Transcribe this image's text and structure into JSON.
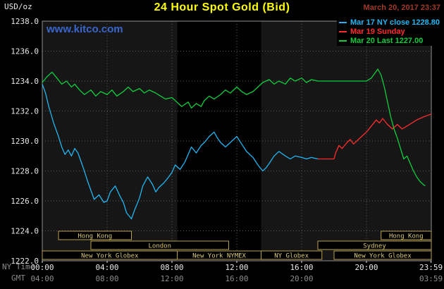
{
  "header": {
    "units": "USD/oz",
    "title": "24 Hour Spot Gold (Bid)",
    "datetime": "March 20, 2017 23:37",
    "watermark": "www.kitco.com"
  },
  "colors": {
    "page_bg": "#000000",
    "plot_bg": "#161616",
    "nymex_band": "#000000",
    "grid": "#5a5a5a",
    "border": "#909090",
    "title": "#ffff00",
    "datetime": "#a03a2a",
    "watermark": "#3a66cc",
    "axis_text": "#e8e8e8",
    "axis_text_dim": "#8a8a8a",
    "session_border": "#b8a14f",
    "session_text": "#d8c878"
  },
  "legend": {
    "items": [
      {
        "label": "Mar 17 NY close 1228.80",
        "color": "#21b6f2"
      },
      {
        "label": "Mar 19 Sunday",
        "color": "#ff2d2d"
      },
      {
        "label": "Mar 20 Last 1227.00",
        "color": "#0fcf3c"
      }
    ]
  },
  "axes": {
    "x_primary_label": "NY Time",
    "x_secondary_label": "GMT",
    "y_ticks": [
      {
        "value": 1238,
        "label": "1238.0"
      },
      {
        "value": 1236,
        "label": "1236.0"
      },
      {
        "value": 1234,
        "label": "1234.0"
      },
      {
        "value": 1232,
        "label": "1232.0"
      },
      {
        "value": 1230,
        "label": "1230.0"
      },
      {
        "value": 1228,
        "label": "1228.0"
      },
      {
        "value": 1226,
        "label": "1226.0"
      },
      {
        "value": 1224,
        "label": "1224.0"
      },
      {
        "value": 1222,
        "label": "1222.0"
      }
    ],
    "x_primary_ticks": [
      {
        "hour": 0,
        "label": "00:00"
      },
      {
        "hour": 4,
        "label": "04:00"
      },
      {
        "hour": 8,
        "label": "08:00"
      },
      {
        "hour": 12,
        "label": "12:00"
      },
      {
        "hour": 16,
        "label": "16:00"
      },
      {
        "hour": 20,
        "label": "20:00"
      },
      {
        "hour": 23.983,
        "label": "23:59"
      }
    ],
    "x_secondary_ticks": [
      {
        "hour": 0,
        "label": "04:00"
      },
      {
        "hour": 4,
        "label": "08:00"
      },
      {
        "hour": 8,
        "label": "12:00"
      },
      {
        "hour": 12,
        "label": "16:00"
      },
      {
        "hour": 16,
        "label": "20:00"
      },
      {
        "hour": 23.983,
        "label": "03:59"
      }
    ]
  },
  "sessions": [
    {
      "row": 0,
      "start": 1.0,
      "end": 5.5,
      "label": "Hong Kong"
    },
    {
      "row": 0,
      "start": 20.9,
      "end": 24,
      "label": "Hong Kong"
    },
    {
      "row": 1,
      "start": 3.0,
      "end": 11.5,
      "label": "London"
    },
    {
      "row": 1,
      "start": 17.0,
      "end": 24,
      "label": "Sydney"
    },
    {
      "row": 2,
      "start": 0,
      "end": 8.33,
      "label": "New York Globex"
    },
    {
      "row": 2,
      "start": 8.33,
      "end": 13.5,
      "label": "New York NYMEX"
    },
    {
      "row": 2,
      "start": 13.5,
      "end": 17.25,
      "label": "NY Globex"
    },
    {
      "row": 2,
      "start": 18.0,
      "end": 24,
      "label": "New York Globex"
    }
  ],
  "chart_data": {
    "type": "line",
    "title": "24 Hour Spot Gold (Bid)",
    "x_unit": "NY time (hours)",
    "xlim": [
      0,
      24
    ],
    "ylim": [
      1222,
      1238
    ],
    "ylabel": "USD/oz",
    "grid": true,
    "legend_position": "top-right",
    "shaded_band": {
      "start_hour": 8.33,
      "end_hour": 13.5,
      "label": "New York NYMEX floor session"
    },
    "series": [
      {
        "name": "Mar 17 NY close 1228.80",
        "color": "#21b6f2",
        "points": [
          [
            0,
            1233.8
          ],
          [
            0.2,
            1233.2
          ],
          [
            0.4,
            1232.3
          ],
          [
            0.7,
            1231.2
          ],
          [
            1,
            1230.3
          ],
          [
            1.2,
            1229.6
          ],
          [
            1.4,
            1229.1
          ],
          [
            1.6,
            1229.4
          ],
          [
            1.8,
            1229.0
          ],
          [
            2,
            1229.5
          ],
          [
            2.2,
            1229.2
          ],
          [
            2.5,
            1228.3
          ],
          [
            2.8,
            1227.3
          ],
          [
            3,
            1226.7
          ],
          [
            3.2,
            1226.1
          ],
          [
            3.5,
            1226.4
          ],
          [
            3.8,
            1225.9
          ],
          [
            4,
            1226.0
          ],
          [
            4.2,
            1226.6
          ],
          [
            4.5,
            1227.0
          ],
          [
            4.8,
            1226.3
          ],
          [
            5,
            1225.9
          ],
          [
            5.2,
            1225.2
          ],
          [
            5.5,
            1224.8
          ],
          [
            5.7,
            1225.4
          ],
          [
            6,
            1226.2
          ],
          [
            6.2,
            1227.0
          ],
          [
            6.5,
            1227.6
          ],
          [
            6.8,
            1227.1
          ],
          [
            7,
            1226.6
          ],
          [
            7.2,
            1226.9
          ],
          [
            7.5,
            1227.2
          ],
          [
            7.8,
            1227.6
          ],
          [
            8,
            1227.9
          ],
          [
            8.2,
            1228.4
          ],
          [
            8.5,
            1228.1
          ],
          [
            8.8,
            1228.6
          ],
          [
            9,
            1229.1
          ],
          [
            9.2,
            1229.6
          ],
          [
            9.5,
            1229.2
          ],
          [
            9.8,
            1229.7
          ],
          [
            10,
            1229.9
          ],
          [
            10.3,
            1230.3
          ],
          [
            10.6,
            1230.6
          ],
          [
            10.8,
            1230.2
          ],
          [
            11,
            1229.9
          ],
          [
            11.3,
            1229.6
          ],
          [
            11.6,
            1229.9
          ],
          [
            12,
            1230.3
          ],
          [
            12.3,
            1229.8
          ],
          [
            12.6,
            1229.3
          ],
          [
            13,
            1228.9
          ],
          [
            13.3,
            1228.4
          ],
          [
            13.6,
            1228.0
          ],
          [
            13.8,
            1228.2
          ],
          [
            14,
            1228.5
          ],
          [
            14.3,
            1229.0
          ],
          [
            14.6,
            1229.3
          ],
          [
            15,
            1229.0
          ],
          [
            15.3,
            1228.8
          ],
          [
            15.6,
            1229.0
          ],
          [
            16,
            1228.9
          ],
          [
            16.3,
            1228.8
          ],
          [
            16.6,
            1228.9
          ],
          [
            17,
            1228.8
          ]
        ]
      },
      {
        "name": "Mar 19 Sunday",
        "color": "#ff2d2d",
        "points": [
          [
            17,
            1228.8
          ],
          [
            17.5,
            1228.8
          ],
          [
            18,
            1228.8
          ],
          [
            18.1,
            1229.2
          ],
          [
            18.3,
            1229.7
          ],
          [
            18.5,
            1229.5
          ],
          [
            18.8,
            1229.9
          ],
          [
            19,
            1230.1
          ],
          [
            19.2,
            1229.8
          ],
          [
            19.5,
            1230.1
          ],
          [
            19.8,
            1230.4
          ],
          [
            20,
            1230.6
          ],
          [
            20.3,
            1231.0
          ],
          [
            20.6,
            1231.4
          ],
          [
            20.8,
            1231.2
          ],
          [
            21,
            1231.5
          ],
          [
            21.3,
            1231.1
          ],
          [
            21.6,
            1230.8
          ],
          [
            21.9,
            1231.1
          ],
          [
            22.2,
            1230.8
          ],
          [
            22.5,
            1231.0
          ],
          [
            22.8,
            1231.2
          ],
          [
            23.1,
            1231.4
          ],
          [
            23.5,
            1231.6
          ],
          [
            24,
            1231.8
          ]
        ]
      },
      {
        "name": "Mar 20 Last 1227.00",
        "color": "#0fcf3c",
        "points": [
          [
            0,
            1233.9
          ],
          [
            0.3,
            1234.3
          ],
          [
            0.6,
            1234.6
          ],
          [
            0.9,
            1234.2
          ],
          [
            1.2,
            1233.8
          ],
          [
            1.5,
            1234.0
          ],
          [
            1.8,
            1233.6
          ],
          [
            2,
            1233.8
          ],
          [
            2.3,
            1233.4
          ],
          [
            2.6,
            1233.1
          ],
          [
            3,
            1233.4
          ],
          [
            3.3,
            1233.0
          ],
          [
            3.6,
            1233.3
          ],
          [
            4,
            1233.1
          ],
          [
            4.3,
            1233.4
          ],
          [
            4.6,
            1233.0
          ],
          [
            5,
            1233.3
          ],
          [
            5.3,
            1233.6
          ],
          [
            5.6,
            1233.3
          ],
          [
            6,
            1233.5
          ],
          [
            6.3,
            1233.2
          ],
          [
            6.6,
            1233.4
          ],
          [
            7,
            1233.2
          ],
          [
            7.3,
            1233.0
          ],
          [
            7.6,
            1232.8
          ],
          [
            8,
            1232.9
          ],
          [
            8.3,
            1232.6
          ],
          [
            8.6,
            1232.3
          ],
          [
            9,
            1232.6
          ],
          [
            9.2,
            1232.2
          ],
          [
            9.5,
            1232.5
          ],
          [
            9.8,
            1232.3
          ],
          [
            10,
            1232.7
          ],
          [
            10.3,
            1233.0
          ],
          [
            10.6,
            1232.8
          ],
          [
            11,
            1233.1
          ],
          [
            11.3,
            1233.4
          ],
          [
            11.6,
            1233.2
          ],
          [
            12,
            1233.6
          ],
          [
            12.3,
            1233.3
          ],
          [
            12.6,
            1233.1
          ],
          [
            13,
            1233.3
          ],
          [
            13.3,
            1233.6
          ],
          [
            13.6,
            1233.9
          ],
          [
            14,
            1234.1
          ],
          [
            14.3,
            1233.8
          ],
          [
            14.6,
            1234.0
          ],
          [
            15,
            1233.8
          ],
          [
            15.3,
            1234.2
          ],
          [
            15.6,
            1234.0
          ],
          [
            16,
            1234.2
          ],
          [
            16.3,
            1233.9
          ],
          [
            16.6,
            1234.1
          ],
          [
            17,
            1234.0
          ],
          [
            17.5,
            1234.0
          ],
          [
            18,
            1234.0
          ],
          [
            18.5,
            1234.0
          ],
          [
            19,
            1234.0
          ],
          [
            19.5,
            1234.0
          ],
          [
            20,
            1234.0
          ],
          [
            20.3,
            1234.2
          ],
          [
            20.5,
            1234.5
          ],
          [
            20.7,
            1234.8
          ],
          [
            20.9,
            1234.4
          ],
          [
            21.1,
            1233.6
          ],
          [
            21.3,
            1232.6
          ],
          [
            21.5,
            1231.6
          ],
          [
            21.7,
            1230.8
          ],
          [
            21.9,
            1230.2
          ],
          [
            22.1,
            1229.5
          ],
          [
            22.3,
            1228.8
          ],
          [
            22.5,
            1229.0
          ],
          [
            22.7,
            1228.5
          ],
          [
            22.9,
            1228.0
          ],
          [
            23.1,
            1227.6
          ],
          [
            23.3,
            1227.3
          ],
          [
            23.5,
            1227.1
          ],
          [
            23.62,
            1227.0
          ]
        ]
      }
    ]
  }
}
